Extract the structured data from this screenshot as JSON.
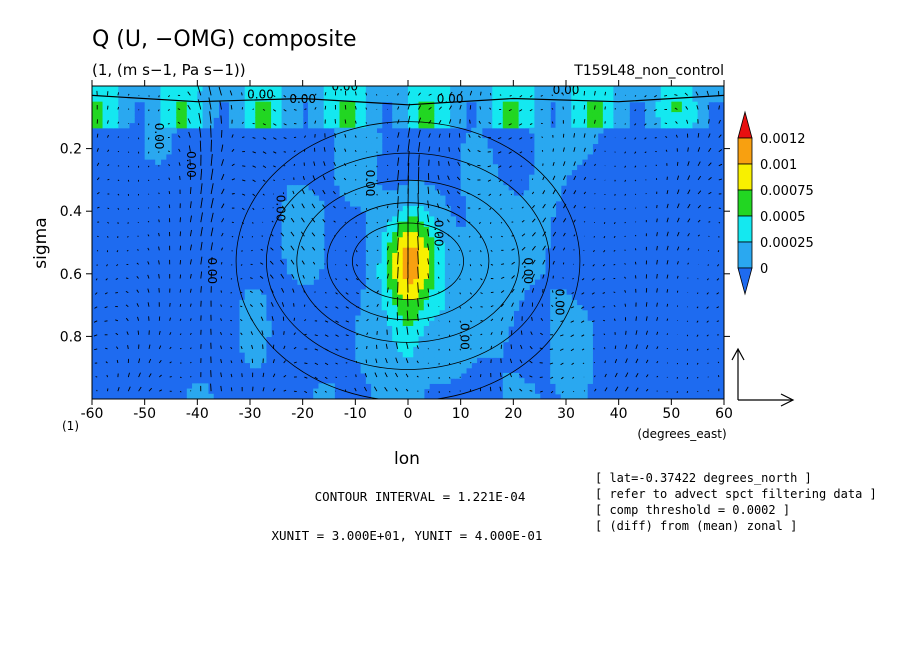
{
  "chart_data": {
    "type": "heatmap",
    "title": "Q (U, −OMG) composite",
    "subtitle": "(1, (m s−1, Pa s−1))",
    "run_label": "T159L48_non_control",
    "xlabel": "lon",
    "xunits": "(degrees_east)",
    "ylabel": "sigma",
    "yunits": "(1)",
    "xlim": [
      -60,
      60
    ],
    "ylim": [
      1.0,
      0.0
    ],
    "x_ticks": [
      -60,
      -50,
      -40,
      -30,
      -20,
      -10,
      0,
      10,
      20,
      30,
      40,
      50,
      60
    ],
    "x_tick_labels": [
      "-60",
      "-50",
      "-40",
      "-30",
      "-20",
      "-10",
      "0",
      "10",
      "20",
      "30",
      "40",
      "50",
      "60"
    ],
    "y_ticks": [
      0.2,
      0.4,
      0.6,
      0.8
    ],
    "y_tick_labels": [
      "0.2",
      "0.4",
      "0.6",
      "0.8"
    ],
    "colorbar": {
      "levels": [
        0,
        0.00025,
        0.0005,
        0.00075,
        0.001,
        0.0012
      ],
      "labels": [
        "0",
        "0.00025",
        "0.0005",
        "0.00075",
        "0.001",
        "0.0012"
      ],
      "colors": [
        "#1e6bf0",
        "#2aa8f0",
        "#14e8f0",
        "#22d622",
        "#f8f000",
        "#f8a010",
        "#e81010"
      ],
      "extend": "both"
    },
    "contour_labels": [
      "0.00",
      "0.00",
      "0.00",
      "0.00",
      "0.00",
      "0.00",
      "0.00",
      "0.00",
      "0.00",
      "0.00",
      "0.00",
      "0.00",
      "0.00",
      "0.00"
    ],
    "contour_interval": "CONTOUR INTERVAL = 1.221E-04",
    "vector_units": "XUNIT = 3.000E+01, YUNIT = 4.000E-01",
    "notes": [
      "[ lat=-0.37422 degrees_north ]",
      "[ refer to advect spct filtering data ]",
      "[ comp threshold = 0.0002 ]",
      "[ (diff) from (mean) zonal ]"
    ]
  }
}
